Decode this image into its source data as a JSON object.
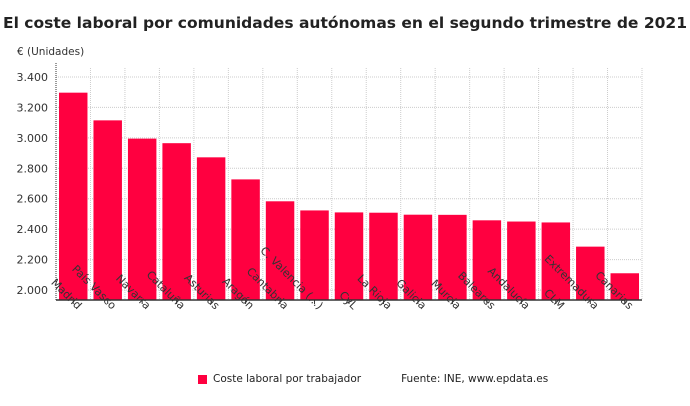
{
  "chart_data": {
    "type": "bar",
    "title": "El coste laboral por comunidades autónomas en el segundo trimestre de 2021",
    "ylabel": "€ (Unidades)",
    "xlabel": "",
    "categories": [
      "Madrid",
      "País Vasco",
      "Navarra",
      "Cataluña",
      "Asturias",
      "Aragón",
      "Cantabria",
      "C. Valencia (...)",
      "CyL",
      "La Rioja",
      "Galicia",
      "Murcia",
      "Baleares",
      "Andalucía",
      "CLM",
      "Extremadura",
      "Canarias"
    ],
    "series": [
      {
        "name": "Coste laboral por trabajador",
        "values": [
          3297,
          3115,
          2995,
          2965,
          2872,
          2727,
          2583,
          2523,
          2510,
          2508,
          2495,
          2494,
          2458,
          2450,
          2444,
          2285,
          2110
        ],
        "color": "#ff0040"
      }
    ],
    "ylim": [
      1950,
      3450
    ],
    "yticks": [
      2000,
      2200,
      2400,
      2600,
      2800,
      3000,
      3200,
      3400
    ],
    "ytick_labels": [
      "2.000",
      "2.200",
      "2.400",
      "2.600",
      "2.800",
      "3.000",
      "3.200",
      "3.400"
    ],
    "grid": true,
    "legend": "bottom",
    "source": "Fuente: INE, www.epdata.es"
  }
}
